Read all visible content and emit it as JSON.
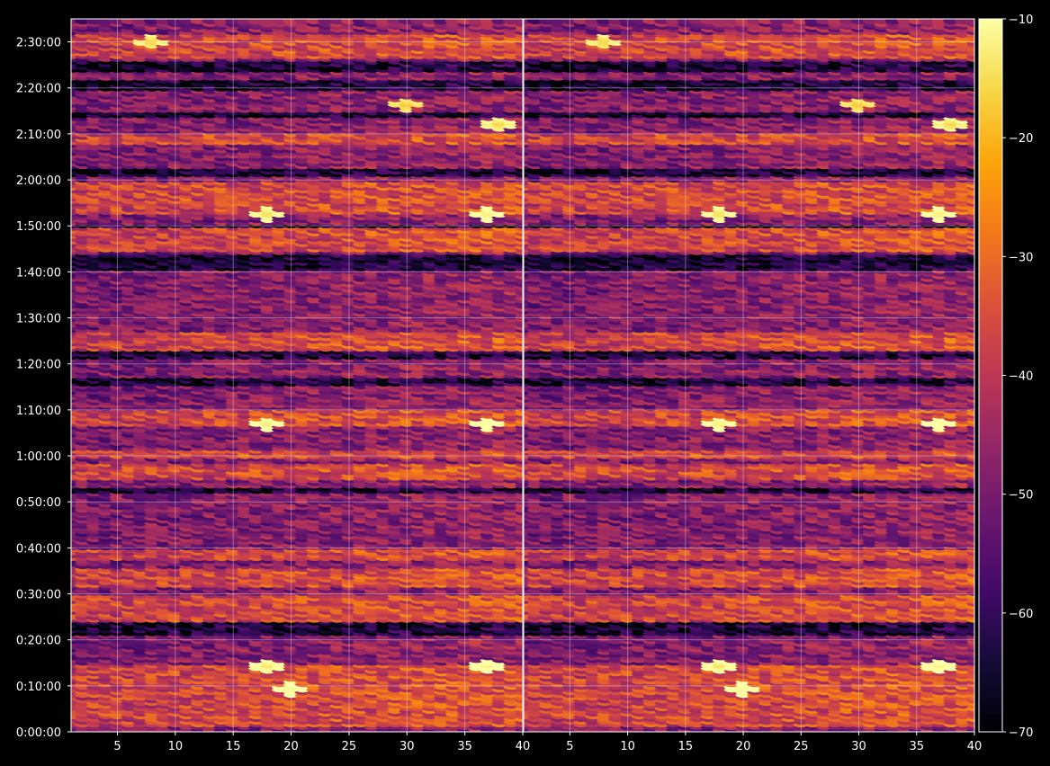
{
  "chart_data": {
    "type": "heatmap",
    "title": "",
    "xlabel": "",
    "ylabel": "",
    "panels": [
      {
        "name": "",
        "xlim": [
          1,
          40
        ]
      },
      {
        "name": "",
        "xlim": [
          1,
          40
        ]
      }
    ],
    "x_ticks": [
      5,
      10,
      15,
      20,
      25,
      30,
      35,
      40
    ],
    "x_tick_labels": [
      "5",
      "10",
      "15",
      "20",
      "25",
      "30",
      "35",
      "40"
    ],
    "ylim_seconds": [
      0,
      9300
    ],
    "y_ticks_seconds": [
      0,
      600,
      1200,
      1800,
      2400,
      3000,
      3600,
      4200,
      4800,
      5400,
      6000,
      6600,
      7200,
      7800,
      8400,
      9000
    ],
    "y_tick_labels": [
      "0:00:00",
      "0:10:00",
      "0:20:00",
      "0:30:00",
      "0:40:00",
      "0:50:00",
      "1:00:00",
      "1:10:00",
      "1:20:00",
      "1:30:00",
      "1:40:00",
      "1:50:00",
      "2:00:00",
      "2:10:00",
      "2:20:00",
      "2:30:00"
    ],
    "colorbar": {
      "cmap": "inferno",
      "range": [
        -70,
        -10
      ],
      "ticks": [
        -70,
        -60,
        -50,
        -40,
        -30,
        -20,
        -10
      ],
      "tick_labels": [
        "−70",
        "−60",
        "−50",
        "−40",
        "−30",
        "−20",
        "−10"
      ]
    },
    "grid": true,
    "bright_spots": [
      {
        "x": 18,
        "t": 879,
        "v": -14
      },
      {
        "x": 20,
        "t": 577,
        "v": -12
      },
      {
        "x": 37,
        "t": 879,
        "v": -12
      },
      {
        "x": 18,
        "t": 4039,
        "v": -13
      },
      {
        "x": 37,
        "t": 4039,
        "v": -11
      },
      {
        "x": 18,
        "t": 6774,
        "v": -15
      },
      {
        "x": 37,
        "t": 6774,
        "v": -13
      },
      {
        "x": 30,
        "t": 8195,
        "v": -18
      },
      {
        "x": 38,
        "t": 7941,
        "v": -16
      },
      {
        "x": 8,
        "t": 9020,
        "v": -17
      }
    ]
  }
}
